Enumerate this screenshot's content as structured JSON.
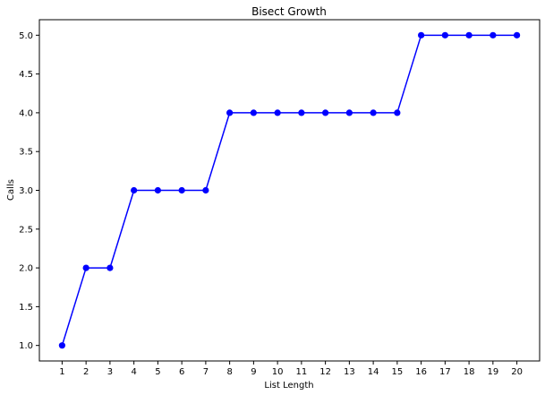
{
  "chart_data": {
    "type": "line",
    "title": "Bisect Growth",
    "xlabel": "List Length",
    "ylabel": "Calls",
    "x": [
      1,
      2,
      3,
      4,
      5,
      6,
      7,
      8,
      9,
      10,
      11,
      12,
      13,
      14,
      15,
      16,
      17,
      18,
      19,
      20
    ],
    "series": [
      {
        "values": [
          1,
          2,
          2,
          3,
          3,
          3,
          3,
          4,
          4,
          4,
          4,
          4,
          4,
          4,
          4,
          5,
          5,
          5,
          5,
          5
        ],
        "color": "#0000ff"
      }
    ],
    "xticks": [
      "1",
      "2",
      "3",
      "4",
      "5",
      "6",
      "7",
      "8",
      "9",
      "10",
      "11",
      "12",
      "13",
      "14",
      "15",
      "16",
      "17",
      "18",
      "19",
      "20"
    ],
    "yticks": [
      "1.0",
      "1.5",
      "2.0",
      "2.5",
      "3.0",
      "3.5",
      "4.0",
      "4.5",
      "5.0"
    ],
    "xlim": [
      0.05,
      20.95
    ],
    "ylim": [
      0.8,
      5.2
    ],
    "grid": false,
    "legend": false,
    "markers": "circle"
  }
}
